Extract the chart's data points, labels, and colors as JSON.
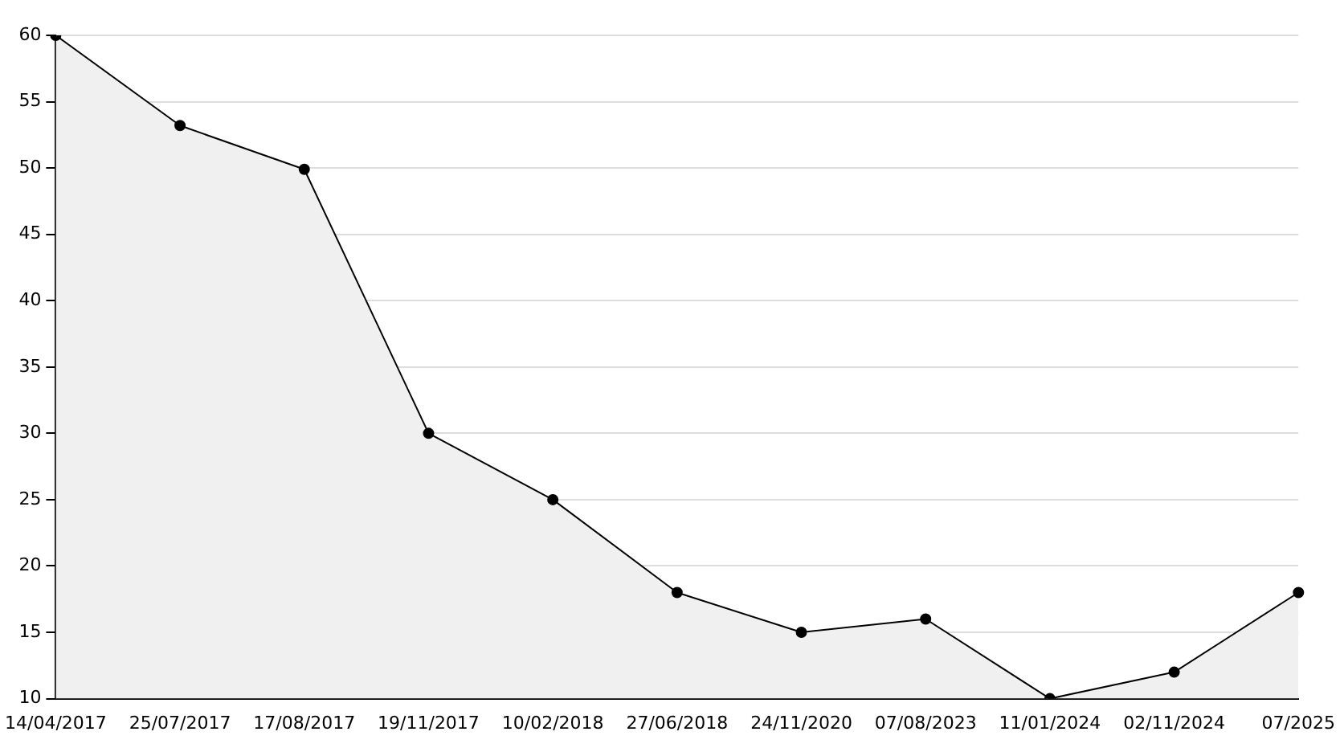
{
  "chart_data": {
    "type": "area",
    "categories": [
      "14/04/2017",
      "25/07/2017",
      "17/08/2017",
      "19/11/2017",
      "10/02/2018",
      "27/06/2018",
      "24/11/2020",
      "07/08/2023",
      "11/01/2024",
      "02/11/2024",
      "07/2025"
    ],
    "series": [
      {
        "color": "#000000",
        "values": [
          60,
          53.2,
          49.9,
          30,
          25,
          18,
          15,
          16,
          10,
          12,
          18
        ]
      }
    ],
    "ylim": [
      10,
      60
    ],
    "yticks": [
      10,
      15,
      20,
      25,
      30,
      35,
      40,
      45,
      50,
      55,
      60
    ],
    "grid": "y",
    "marker": "circle",
    "line_style": "solid",
    "legend": false
  }
}
